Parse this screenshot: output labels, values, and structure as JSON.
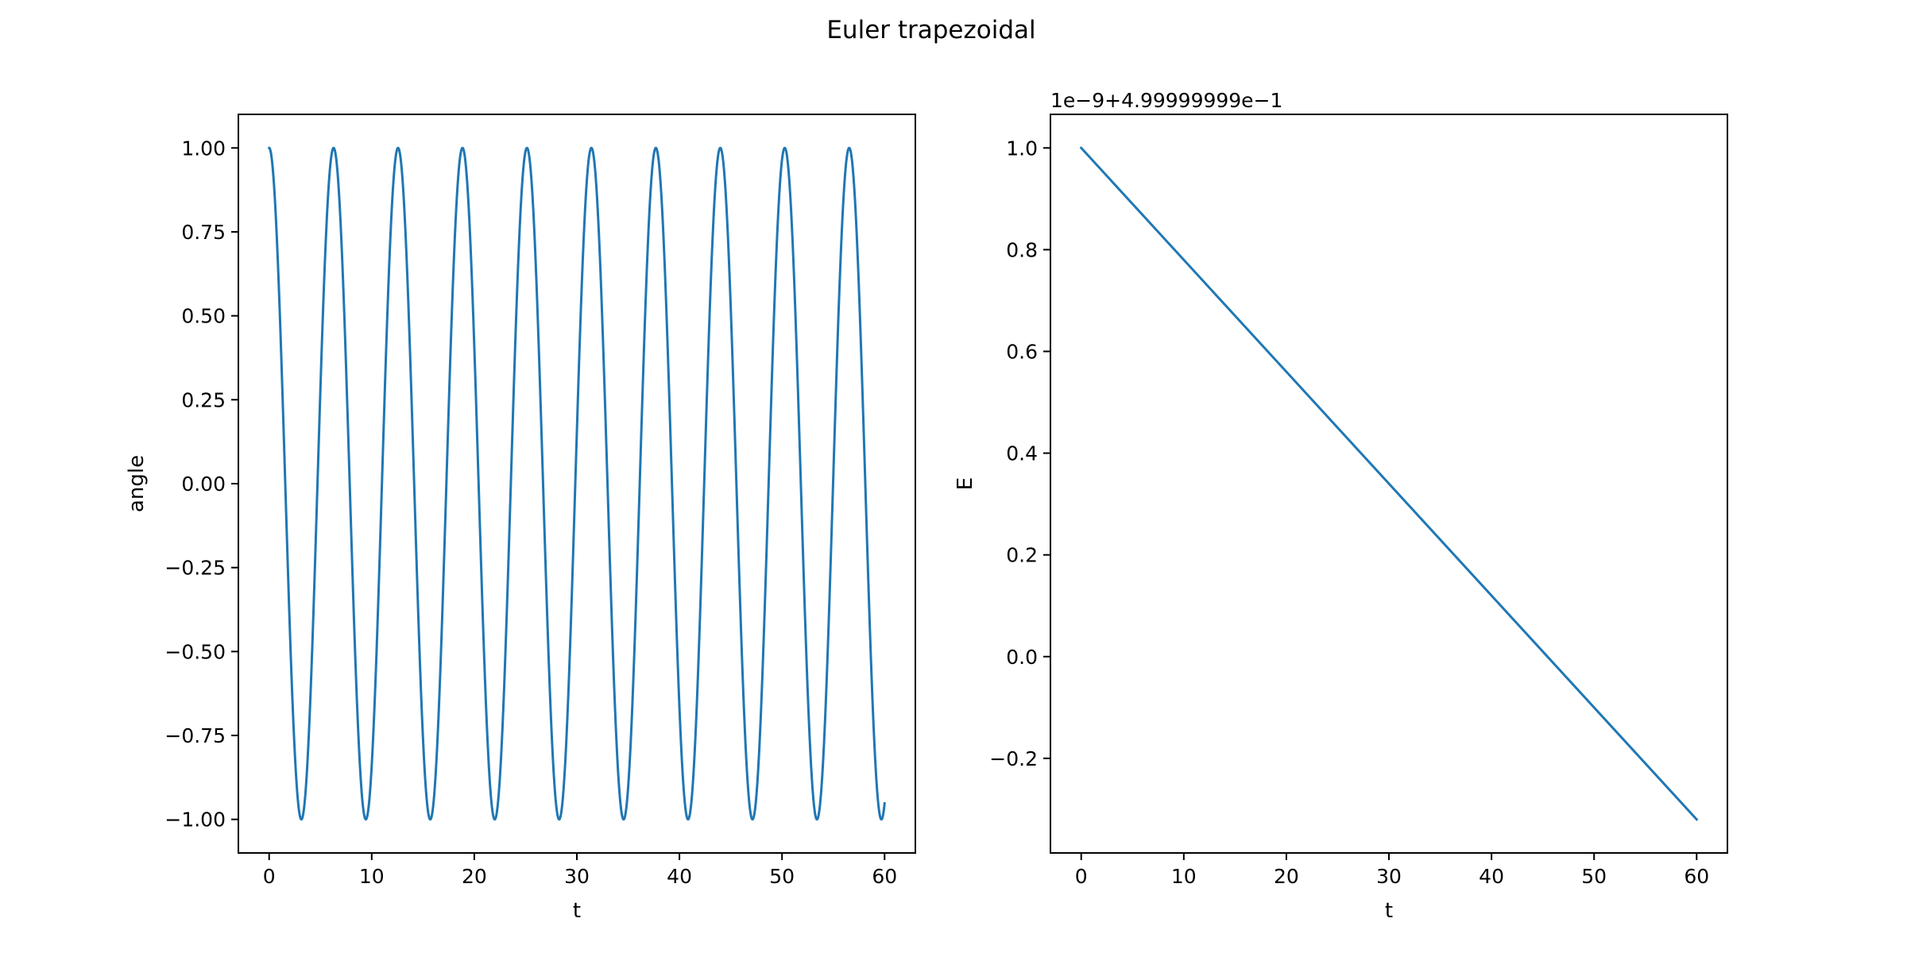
{
  "figure": {
    "title": "Euler trapezoidal"
  },
  "chart_data": [
    {
      "type": "line",
      "title": "",
      "xlabel": "t",
      "ylabel": "angle",
      "xlim": [
        -3,
        63
      ],
      "ylim": [
        -1.1,
        1.1
      ],
      "x_ticks": [
        0,
        10,
        20,
        30,
        40,
        50,
        60
      ],
      "x_tick_labels": [
        "0",
        "10",
        "20",
        "30",
        "40",
        "50",
        "60"
      ],
      "y_ticks": [
        1.0,
        0.75,
        0.5,
        0.25,
        0.0,
        -0.25,
        -0.5,
        -0.75,
        -1.0
      ],
      "y_tick_labels": [
        "1.00",
        "0.75",
        "0.50",
        "0.25",
        "0.00",
        "−0.25",
        "−0.50",
        "−0.75",
        "−1.00"
      ],
      "series": [
        {
          "name": "angle",
          "color": "#1f77b4",
          "function": "cos",
          "amplitude": 1.0,
          "period": 6.2832,
          "t_start": 0,
          "t_end": 60
        }
      ]
    },
    {
      "type": "line",
      "title": "",
      "xlabel": "t",
      "ylabel": "E",
      "offset_text": "1e−9+4.99999999e−1",
      "xlim": [
        -3,
        63
      ],
      "ylim": [
        -0.386,
        1.066
      ],
      "x_ticks": [
        0,
        10,
        20,
        30,
        40,
        50,
        60
      ],
      "x_tick_labels": [
        "0",
        "10",
        "20",
        "30",
        "40",
        "50",
        "60"
      ],
      "y_ticks": [
        1.0,
        0.8,
        0.6,
        0.4,
        0.2,
        0.0,
        -0.2
      ],
      "y_tick_labels": [
        "1.0",
        "0.8",
        "0.6",
        "0.4",
        "0.2",
        "0.0",
        "−0.2"
      ],
      "series": [
        {
          "name": "E",
          "color": "#1f77b4",
          "x": [
            0,
            60
          ],
          "y": [
            1.0,
            -0.32
          ]
        }
      ]
    }
  ]
}
